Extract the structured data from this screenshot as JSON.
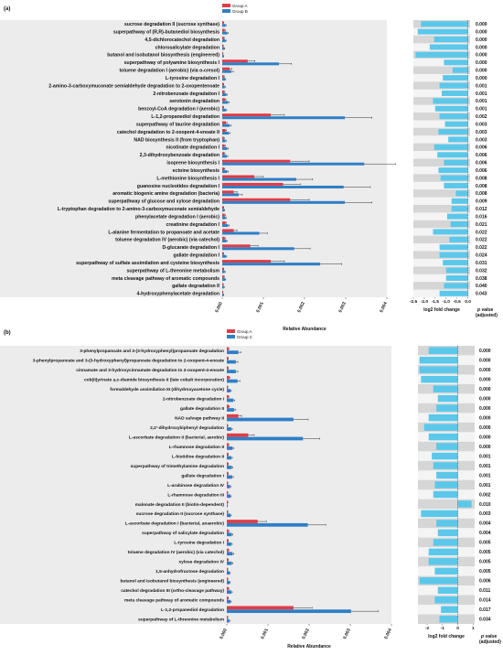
{
  "colors": {
    "groupA": "#e23b45",
    "groupB": "#2f7fc6",
    "fc": "#5bc8ea",
    "panel_bg": "#ececec",
    "stripe": "#d6d6d6"
  },
  "charts": {
    "a": {
      "panel_label": "(a)",
      "legend": [
        "Group A",
        "Group B"
      ],
      "xlabel": "Relative Abundance",
      "fc_xlabel": "log2 fold change",
      "p_header": [
        "p value",
        "(adjusted)"
      ],
      "x_ticks": [
        "0.000",
        "0.001",
        "0.002",
        "0.003",
        "0.004"
      ],
      "fc_ticks": [
        "-2.5",
        "-2.0",
        "-1.5",
        "-1.0",
        "-0.5",
        "0.0"
      ]
    },
    "b": {
      "panel_label": "(b)",
      "legend": [
        "Group A",
        "Group C"
      ],
      "xlabel": "Relative Abundance",
      "fc_xlabel": "log2 fold change",
      "p_header": [
        "p value",
        "(adjusted)"
      ],
      "x_ticks": [
        "0.000",
        "0.001",
        "0.002",
        "0.003",
        "0.004"
      ],
      "fc_ticks": [
        "-2",
        "-1",
        "0",
        "1"
      ]
    }
  },
  "chart_data": [
    {
      "type": "bar",
      "xlim": [
        0,
        0.004
      ],
      "fc_lim": [
        -2.5,
        0.1
      ],
      "categories": [
        "sucrose degradation II (sucrose synthase)",
        "superpathway of (R,R)-butanediol biosynthesis",
        "4,5-dichlorocatechol degradation",
        "chlorosalicylate degradation",
        "butanol and isobutanol biosynthesis (engineered)",
        "superpathway of polyamine biosynthesis I",
        "toluene degradation I (aerobic) (via o-cresol)",
        "L-tyrosine degradation I",
        "2-amino-3-carboxymuconate semialdehyde degradation to 2-oxopentenoate",
        "2-nitrobenzoate degradation I",
        "serotonin degradation",
        "benzoyl-CoA degradation I (aerobic)",
        "L-1,2-propanediol degradation",
        "superpathway of taurine degradation",
        "catechol degradation to 2-oxopent-4-enoate II",
        "NAD biosynthesis II (from tryptophan)",
        "nicotinate degradation I",
        "2,3-dihydroxybenzoate degradation",
        "isoprene biosynthesis I",
        "ectoine biosynthesis",
        "L-methionine biosynthesis I",
        "guanosine nucleotides degradation I",
        "aromatic biogenic amine degradation (bacteria)",
        "superpathway of glucose and xylose degradation",
        "L-tryptophan degradation to 2-amino-3-carboxymuconate semialdehyde",
        "phenylacetate degradation I (aerobic)",
        "creatinine degradation I",
        "L-alanine fermentation to propanoate and acetate",
        "toluene degradation IV (aerobic) (via catechol)",
        "D-glucarate degradation I",
        "gallate degradation I",
        "superpathway of sulfate assimilation and cysteine biosynthesis",
        "superpathway of L-threonine metabolism",
        "meta cleavage pathway of aromatic compounds",
        "gallate degradation II",
        "4-hydroxyphenylacetate degradation"
      ],
      "series": [
        {
          "name": "Group A",
          "values": [
            3e-05,
            6e-05,
            4e-05,
            2e-05,
            1.5e-05,
            0.00062,
            0.00018,
            4e-05,
            3e-05,
            5e-05,
            7e-05,
            3e-05,
            0.00118,
            9e-05,
            8e-05,
            4e-05,
            6e-05,
            5e-05,
            0.00165,
            5e-05,
            0.00078,
            0.00148,
            0.00028,
            0.00165,
            3e-05,
            6e-05,
            8e-05,
            0.00028,
            6e-05,
            0.00068,
            3e-05,
            0.00118,
            3e-05,
            4e-05,
            2e-05,
            1.5e-05
          ]
        },
        {
          "name": "Group B",
          "values": [
            8e-05,
            0.00012,
            8e-05,
            5e-05,
            3e-05,
            0.00138,
            0.00022,
            7e-05,
            6e-05,
            0.0001,
            0.00014,
            9e-05,
            0.00298,
            0.00018,
            0.00016,
            8e-05,
            0.00012,
            0.00011,
            0.00345,
            0.00012,
            0.0018,
            0.00295,
            0.0004,
            0.00298,
            5e-05,
            8e-05,
            0.00014,
            0.0009,
            0.0001,
            0.00175,
            9e-05,
            0.00238,
            6e-05,
            7e-05,
            4e-05,
            3e-05
          ]
        }
      ],
      "log2_fc": [
        -2.15,
        -2.3,
        -1.55,
        -1.75,
        -2.4,
        -1.1,
        -0.7,
        -1.15,
        -1.3,
        -1.2,
        -1.6,
        -1.5,
        -1.3,
        -1.05,
        -1.35,
        -0.9,
        -1.55,
        -1.4,
        -1.1,
        -1.35,
        -1.25,
        -1.1,
        -0.55,
        -0.75,
        -0.75,
        -0.95,
        -0.8,
        -1.6,
        -0.85,
        -1.3,
        -1.3,
        -1.15,
        -1.0,
        -1.0,
        -1.1,
        -1.3
      ],
      "p_values": [
        "0.000",
        "0.000",
        "0.000",
        "0.000",
        "0.000",
        "0.000",
        "0.000",
        "0.000",
        "0.001",
        "0.001",
        "0.001",
        "0.001",
        "0.002",
        "0.003",
        "0.003",
        "0.003",
        "0.006",
        "0.006",
        "0.006",
        "0.006",
        "0.008",
        "0.008",
        "0.008",
        "0.009",
        "0.012",
        "0.016",
        "0.021",
        "0.022",
        "0.022",
        "0.022",
        "0.024",
        "0.031",
        "0.032",
        "0.038",
        "0.040",
        "0.043"
      ]
    },
    {
      "type": "bar",
      "xlim": [
        0,
        0.004
      ],
      "fc_lim": [
        -2.6,
        1.1
      ],
      "categories": [
        "3-phenylpropanoate and 3-(3-hydroxyphenyl)propanoate degradation",
        "3-phenylpropanoate and 3-(3-hydroxyphenyl)propanoate degradation to 2-oxopent-4-enoate",
        "cinnamate and 3-hydroxycinnamate degradation to 2-oxopent-4-enoate",
        "cob(II)yrinate a,c-diamide biosynthesis II (late cobalt incorporation)",
        "formaldehyde assimilation III (dihydroxyacetone cycle)",
        "2-nitrobenzoate degradation I",
        "gallate degradation II",
        "NAD salvage pathway II",
        "2,2'-dihydroxybiphenyl degradation",
        "L-ascorbate degradation II (bacterial, aerobic)",
        "L-rhamnose degradation II",
        "L-histidine degradation II",
        "superpathway of trimethylamine degradation",
        "gallate degradation I",
        "L-arabinose degradation IV",
        "L-rhamnose degradation III",
        "malonate degradation II (biotin-dependent)",
        "sucrose degradation II (sucrose synthase)",
        "L-ascorbate degradation I (bacterial, anaerobic)",
        "superpathway of salicylate degradation",
        "L-tyrosine degradation I",
        "toluene degradation IV (aerobic) (via catechol)",
        "xylose degradation IV",
        "1,5-anhydrofructose degradation",
        "butanol and isobutanol biosynthesis (engineered)",
        "catechol degradation III (ortho-cleavage pathway)",
        "meta cleavage pathway of aromatic compounds",
        "L-1,2-propanediol degradation",
        "superpathway of L-threonine metabolism"
      ],
      "series": [
        {
          "name": "Group A",
          "values": [
            4e-05,
            3e-05,
            3e-05,
            6e-05,
            2e-05,
            4e-05,
            5e-05,
            0.00028,
            2e-05,
            0.00052,
            4e-05,
            3e-05,
            3e-05,
            3e-05,
            2e-05,
            2e-05,
            2e-05,
            2e-05,
            0.00075,
            4e-05,
            3e-05,
            4e-05,
            3e-05,
            2e-05,
            2e-05,
            4e-05,
            3e-05,
            0.00162,
            2e-05
          ]
        },
        {
          "name": "Group C",
          "values": [
            0.00028,
            0.00022,
            0.00022,
            0.00026,
            9e-05,
            0.00016,
            0.00018,
            0.00162,
            0.00011,
            0.00185,
            0.00014,
            0.00011,
            0.00012,
            0.00013,
            8e-05,
            9e-05,
            1e-05,
            9e-05,
            0.00197,
            0.00012,
            0.00011,
            0.00014,
            0.00012,
            7e-05,
            7e-05,
            0.00011,
            9e-05,
            0.00302,
            6e-05
          ]
        }
      ],
      "log2_fc": [
        -1.9,
        -2.5,
        -2.5,
        -2.4,
        -1.6,
        -1.3,
        -1.4,
        -1.9,
        -2.2,
        -1.9,
        -1.4,
        -1.7,
        -1.6,
        -1.4,
        -1.5,
        -1.6,
        0.9,
        -2.4,
        -1.4,
        -1.3,
        -1.6,
        -1.9,
        -1.9,
        -1.5,
        -2.5,
        -1.3,
        -1.5,
        -1.1,
        -1.2
      ],
      "p_values": [
        "0.000",
        "0.000",
        "0.000",
        "0.000",
        "0.000",
        "0.000",
        "0.000",
        "0.000",
        "0.000",
        "0.000",
        "0.000",
        "0.001",
        "0.001",
        "0.001",
        "0.001",
        "0.002",
        "0.010",
        "0.003",
        "0.004",
        "0.004",
        "0.005",
        "0.005",
        "0.005",
        "0.005",
        "0.006",
        "0.011",
        "0.014",
        "0.017",
        "0.034"
      ]
    }
  ]
}
